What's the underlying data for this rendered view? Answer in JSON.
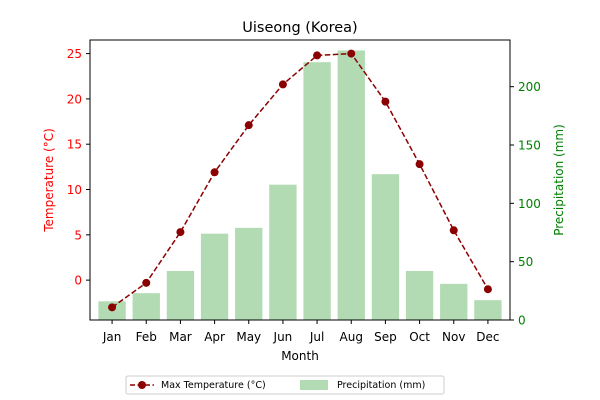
{
  "chart_data": {
    "type": "bar+line",
    "title": "Uiseong (Korea)",
    "xlabel": "Month",
    "ylabel_left": "Temperature (°C)",
    "ylabel_right": "Precipitation (mm)",
    "categories": [
      "Jan",
      "Feb",
      "Mar",
      "Apr",
      "May",
      "Jun",
      "Jul",
      "Aug",
      "Sep",
      "Oct",
      "Nov",
      "Dec"
    ],
    "y_left_lim": [
      -4.4,
      26.5
    ],
    "y_left_ticks": [
      0,
      5,
      10,
      15,
      20,
      25
    ],
    "y_right_lim": [
      0,
      240
    ],
    "y_right_ticks": [
      0,
      50,
      100,
      150,
      200
    ],
    "legend_position": "bottom-center",
    "grid": false,
    "series": [
      {
        "name": "Max Temperature (°C)",
        "kind": "line",
        "axis": "left",
        "color": "#8b0000",
        "values": [
          -3.0,
          -0.3,
          5.3,
          11.9,
          17.1,
          21.6,
          24.8,
          25.0,
          19.7,
          12.8,
          5.5,
          -1.0
        ]
      },
      {
        "name": "Precipitation (mm)",
        "kind": "bar",
        "axis": "right",
        "color": "#b2dbb3",
        "values": [
          16,
          23,
          42,
          74,
          79,
          116,
          221,
          231,
          125,
          42,
          31,
          17
        ]
      }
    ]
  },
  "colors": {
    "left_axis": "#ff0000",
    "right_axis": "#008000",
    "temperature": "#8b0000",
    "precipitation": "#b2dbb3"
  }
}
